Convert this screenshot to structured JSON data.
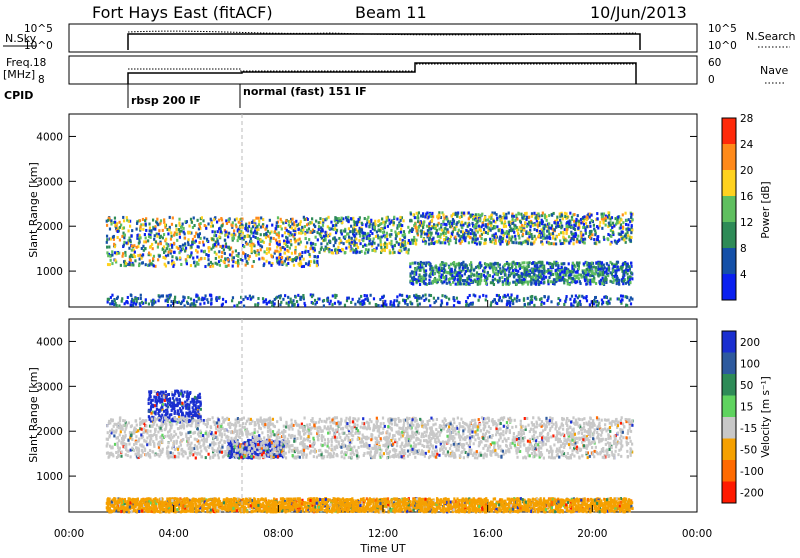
{
  "header": {
    "station": "Fort Hays East (fitACF)",
    "beam": "Beam 11",
    "date": "10/Jun/2013"
  },
  "panels": {
    "nsky": {
      "label": "N.Sky",
      "left_ticks": [
        "10^5",
        "10^0"
      ],
      "right_ticks": [
        "10^5",
        "10^0"
      ],
      "right_label": "N.Search"
    },
    "freq": {
      "label_top": "Freq.",
      "label_unit": "[MHz]",
      "left_ticks": [
        "18",
        "8"
      ],
      "right_ticks": [
        "60",
        "0"
      ],
      "right_label": "Nave"
    },
    "cpid": {
      "label": "CPID",
      "modes": [
        "rbsp 200 IF",
        "normal (fast) 151 IF"
      ]
    }
  },
  "chart_data": [
    {
      "type": "heatmap",
      "quantity": "power",
      "ylabel": "Slant Range [km]",
      "xlabel": "Time UT",
      "y_ticks": [
        1000,
        2000,
        3000,
        4000
      ],
      "ylim": [
        200,
        4500
      ],
      "x_tick_labels": [
        "00:00",
        "04:00",
        "08:00",
        "12:00",
        "16:00",
        "20:00",
        "00:00"
      ],
      "xlim_hours": [
        0,
        24
      ],
      "data_window_hours": [
        1.4,
        21.5
      ],
      "data_gap_hours": 13.0,
      "colorbar": {
        "label": "Power [dB]",
        "ticks": [
          4,
          8,
          12,
          16,
          20,
          24,
          28
        ],
        "colors": [
          "#0a20f0",
          "#1450a8",
          "#2e8b57",
          "#5fbf5f",
          "#ffd21f",
          "#ff8a1a",
          "#ff2a0a"
        ]
      },
      "echo_bands": [
        {
          "name": "daytime-band",
          "x_hours": [
            1.4,
            9.5
          ],
          "range_km": [
            1100,
            2200
          ],
          "peak_db": 24
        },
        {
          "name": "arc-to-gap",
          "x_hours": [
            9.5,
            13.0
          ],
          "range_km": [
            1400,
            2200
          ],
          "peak_db": 20
        },
        {
          "name": "evening-band",
          "x_hours": [
            13.0,
            21.5
          ],
          "range_km": [
            1600,
            2300
          ],
          "peak_db": 22
        },
        {
          "name": "lower-evening",
          "x_hours": [
            13.0,
            21.5
          ],
          "range_km": [
            700,
            1200
          ],
          "peak_db": 16
        }
      ]
    },
    {
      "type": "heatmap",
      "quantity": "velocity",
      "ylabel": "Slant Range [km]",
      "xlabel": "Time UT",
      "y_ticks": [
        1000,
        2000,
        3000,
        4000
      ],
      "ylim": [
        200,
        4500
      ],
      "x_tick_labels": [
        "00:00",
        "04:00",
        "08:00",
        "12:00",
        "16:00",
        "20:00",
        "00:00"
      ],
      "xlim_hours": [
        0,
        24
      ],
      "colorbar": {
        "label": "Velocity [m s⁻¹]",
        "ticks": [
          200,
          100,
          50,
          15,
          -15,
          -50,
          -100,
          -200
        ],
        "colors": [
          "#1a2fd0",
          "#2e5a9e",
          "#2e8b57",
          "#5fd35f",
          "#c8c8c8",
          "#f5a000",
          "#ff6a00",
          "#ff1a00"
        ]
      },
      "echo_features": [
        {
          "name": "blue-patch-early",
          "x_hours": [
            3.0,
            5.0
          ],
          "range_km": [
            2200,
            2900
          ],
          "velocity_ms": 200
        },
        {
          "name": "blue-patch-08h",
          "x_hours": [
            6.0,
            8.2
          ],
          "range_km": [
            1400,
            1800
          ],
          "velocity_ms": 200
        },
        {
          "name": "grey-band",
          "x_hours": [
            1.4,
            21.5
          ],
          "range_km": [
            1400,
            2300
          ],
          "velocity_ms": 0
        },
        {
          "name": "orange-ground-scatter",
          "x_hours": [
            1.4,
            21.5
          ],
          "range_km": [
            200,
            500
          ],
          "velocity_ms": -50
        }
      ]
    }
  ]
}
